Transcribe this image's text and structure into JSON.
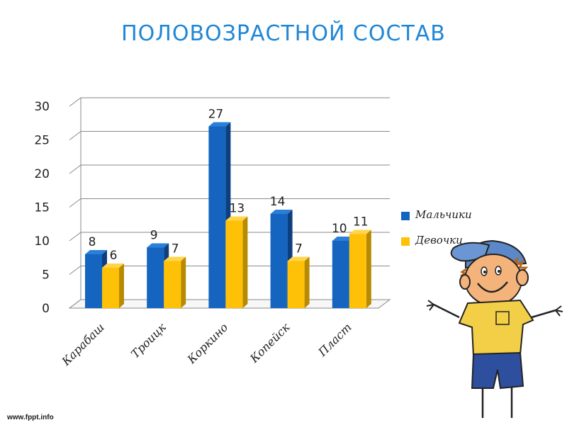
{
  "footer": {
    "text": "www.fppt.info"
  },
  "colors": {
    "boys": "#1565c0",
    "boys_top": "#2a7fd8",
    "boys_side": "#0d3f80",
    "girls": "#ffc107",
    "girls_top": "#ffd54a",
    "girls_side": "#b88a00",
    "grid": "#8a8a8a",
    "title": "#1f86d6"
  },
  "chart_data": {
    "type": "bar",
    "title": "ПОЛОВОЗРАСТНОЙ СОСТАВ",
    "categories": [
      "Карабаш",
      "Троицк",
      "Коркино",
      "Копейск",
      "Пласт"
    ],
    "series": [
      {
        "name": "Мальчики",
        "values": [
          8,
          9,
          27,
          14,
          10
        ]
      },
      {
        "name": "Девочки",
        "values": [
          6,
          7,
          13,
          7,
          11
        ]
      }
    ],
    "ylim": [
      0,
      30
    ],
    "yticks": [
      "0",
      "5",
      "10",
      "15",
      "20",
      "25",
      "30"
    ],
    "grid": true,
    "legend_position": "right",
    "data_labels": true
  }
}
